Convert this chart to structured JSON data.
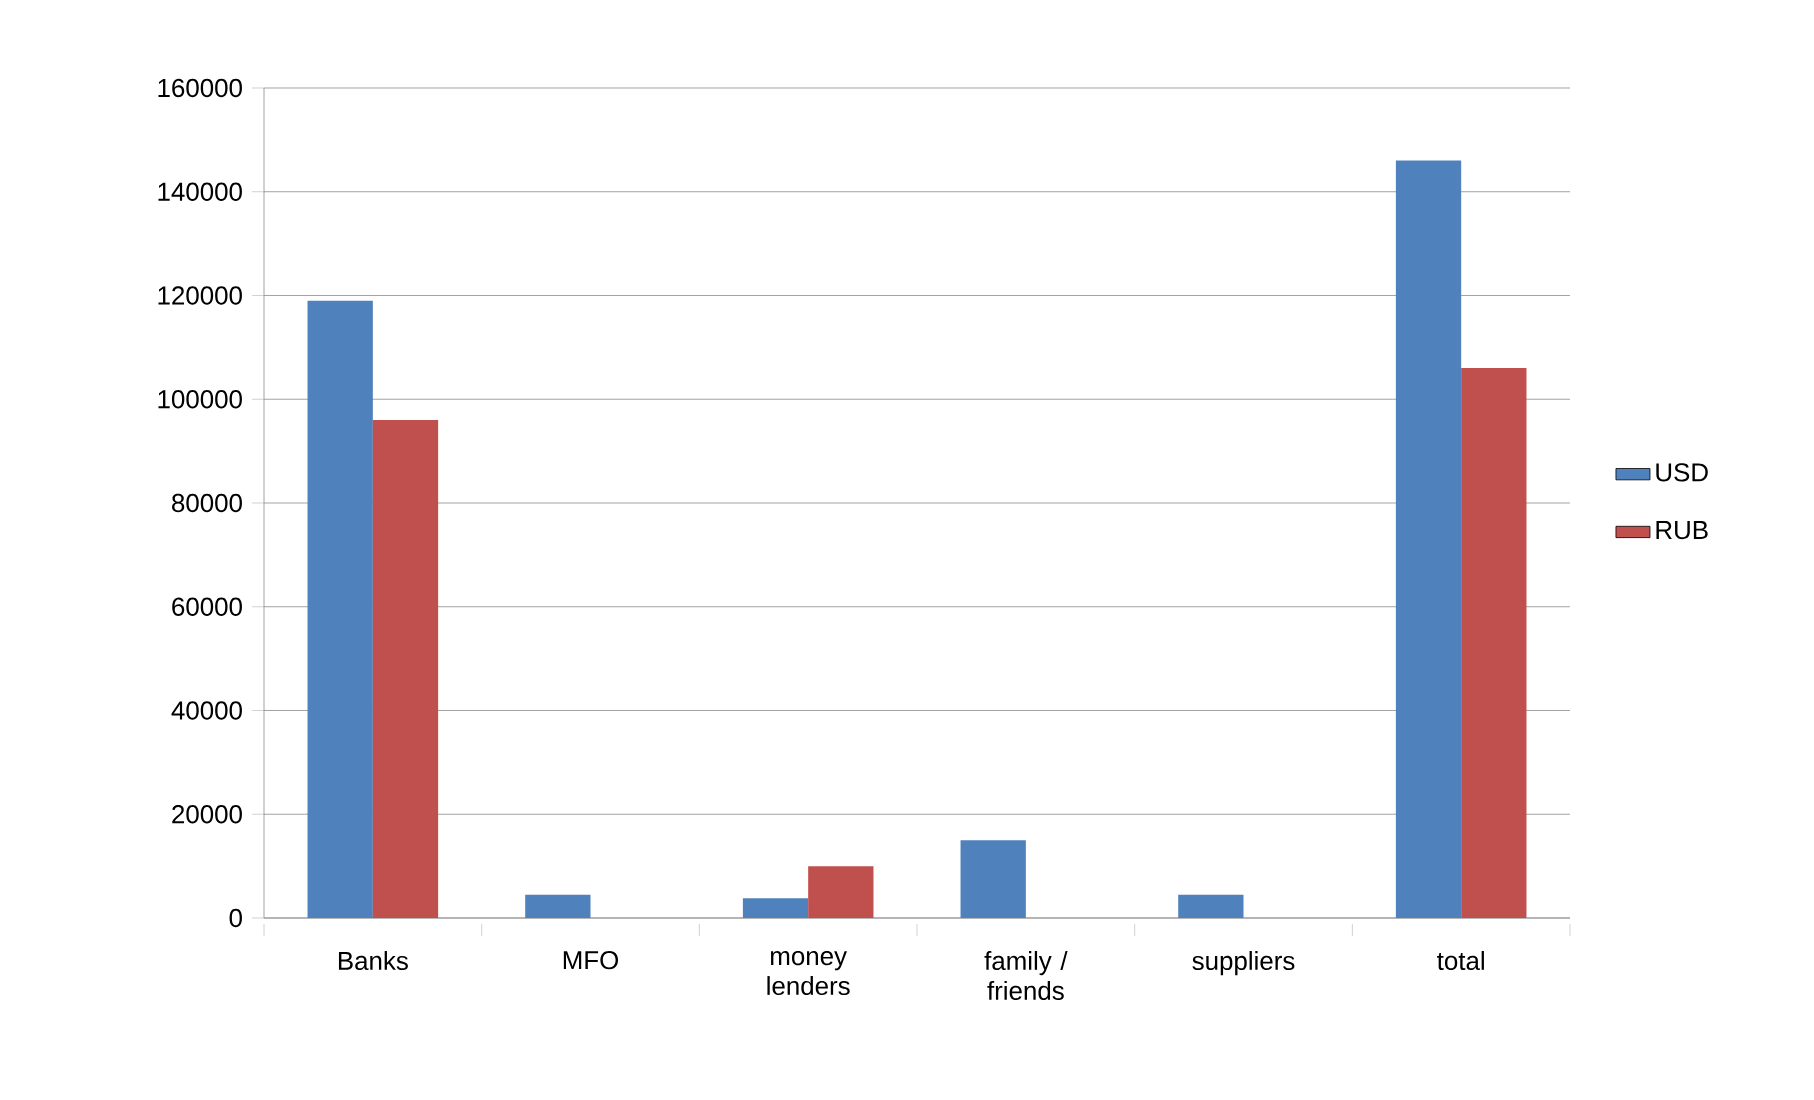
{
  "chart_data": {
    "type": "bar",
    "categories": [
      "Banks",
      "MFO",
      "money lenders",
      "family / friends",
      "suppliers",
      "total"
    ],
    "series": [
      {
        "name": "USD",
        "color": "#4f81bd",
        "values": [
          119000,
          4500,
          3800,
          15000,
          4500,
          146000
        ]
      },
      {
        "name": "RUB",
        "color": "#c0504d",
        "values": [
          96000,
          null,
          10000,
          null,
          null,
          106000
        ]
      }
    ],
    "ylim": [
      0,
      160000
    ],
    "yticks": [
      0,
      20000,
      40000,
      60000,
      80000,
      100000,
      120000,
      140000,
      160000
    ],
    "grid": "y",
    "legend": "right"
  }
}
